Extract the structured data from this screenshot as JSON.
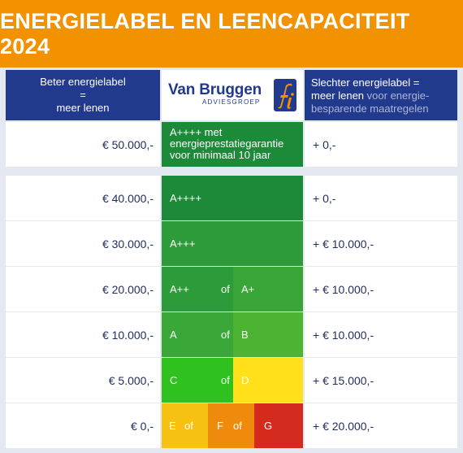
{
  "title": "ENERGIELABEL EN LEENCAPACITEIT 2024",
  "header": {
    "left_line1": "Beter energielabel",
    "left_line2": "=",
    "left_line3": "meer lenen",
    "logo_name": "Van Bruggen",
    "logo_sub": "ADVIESGROEP",
    "logo_icon": "fi-logo-icon",
    "right_line1": "Slechter energielabel =",
    "right_line2_bold": "meer lenen",
    "right_line2_light": "voor energie-",
    "right_line3": "besparende maatregelen"
  },
  "rows": [
    {
      "left": "€ 50.000,-",
      "right": "+ 0,-",
      "label_line1": "A++++ met",
      "label_line2": "energieprestatiegarantie",
      "label_line3": "voor minimaal 10 jaar"
    },
    {
      "left": "€ 40.000,-",
      "right": "+ 0,-",
      "label": "A++++"
    },
    {
      "left": "€ 30.000,-",
      "right": "+ € 10.000,-",
      "label": "A+++"
    },
    {
      "left": "€ 20.000,-",
      "right": "+ € 10.000,-",
      "label_a": "A++",
      "of": "of",
      "label_b": "A+"
    },
    {
      "left": "€ 10.000,-",
      "right": "+ € 10.000,-",
      "label_a": "A",
      "of": "of",
      "label_b": "B"
    },
    {
      "left": "€ 5.000,-",
      "right": "+ € 15.000,-",
      "label_a": "C",
      "of": "of",
      "label_b": "D"
    },
    {
      "left": "€ 0,-",
      "right": "+ € 20.000,-",
      "label_a": "E",
      "of1": "of",
      "label_b": "F",
      "of2": "of",
      "label_c": "G"
    }
  ],
  "colors": {
    "orange": "#f39200",
    "navy": "#223a8e",
    "dark_green": "#1d8a3a",
    "green": "#2e9b3a",
    "mid_green": "#47ad33",
    "light_green": "#2fc21f",
    "yellow_green": "#57d917",
    "yellow": "#ffe01a",
    "amber": "#f7c112",
    "orange_seg": "#ef8b0c",
    "red": "#d52b1e"
  }
}
